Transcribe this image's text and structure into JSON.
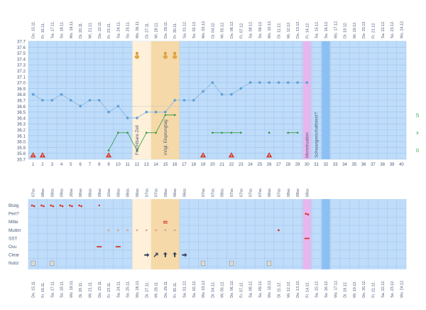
{
  "colors": {
    "panel_bg": "#bfdcfa",
    "grid": "#9fc4ec",
    "fertile_window": "#fff0d9",
    "fertile_window_edge": "#f6d9a8",
    "period_band": "#e7b6ef",
    "pregnancy_band": "#8cc0f2",
    "temp_line": "#8fbde2",
    "temp_point": "#5f9fd4",
    "lh_line": "#3aa14a",
    "lh_point": "#2e8a3d",
    "label_text": "#4a5a7a",
    "green_text": "#3aa14a",
    "red_marker": "#d23a2e"
  },
  "chart_data": {
    "type": "line",
    "days": [
      {
        "date": "Do. 15.11.",
        "cycle_day": "1",
        "time": "07ss"
      },
      {
        "date": "Fr. 16.11.",
        "cycle_day": "2",
        "time": "08ss"
      },
      {
        "date": "Sa. 17.11.",
        "cycle_day": "3",
        "time": "08ss"
      },
      {
        "date": "So. 18.11.",
        "cycle_day": "4",
        "time": "09ss"
      },
      {
        "date": "Mo. 19.11.",
        "cycle_day": "5",
        "time": "20ss"
      },
      {
        "date": "Di. 20.11.",
        "cycle_day": "6",
        "time": "06ss"
      },
      {
        "date": "Mi. 21.11.",
        "cycle_day": "7",
        "time": "06ss"
      },
      {
        "date": "Do. 22.11.",
        "cycle_day": "8",
        "time": "09ss"
      },
      {
        "date": "Fr. 23.11.",
        "cycle_day": "9",
        "time": "10ss"
      },
      {
        "date": "Sa. 24.11.",
        "cycle_day": "10",
        "time": "08ss"
      },
      {
        "date": "So. 25.11.",
        "cycle_day": "11",
        "time": "06ss"
      },
      {
        "date": "Mo. 26.11.",
        "cycle_day": "12",
        "time": "06ss"
      },
      {
        "date": "Di. 27.11.",
        "cycle_day": "13",
        "time": "07ss"
      },
      {
        "date": "Mi. 28.11.",
        "cycle_day": "14",
        "time": "07ss"
      },
      {
        "date": "Do. 29.11.",
        "cycle_day": "15",
        "time": "09ss"
      },
      {
        "date": "Fr. 30.11.",
        "cycle_day": "16",
        "time": "06ss"
      },
      {
        "date": "Sa. 01.12.",
        "cycle_day": "17",
        "time": "06ss"
      },
      {
        "date": "So. 02.12.",
        "cycle_day": "18",
        "time": ""
      },
      {
        "date": "Mo. 03.12.",
        "cycle_day": "19",
        "time": "07ss"
      },
      {
        "date": "Di. 04.12.",
        "cycle_day": "20",
        "time": "07ss"
      },
      {
        "date": "Mi. 05.12.",
        "cycle_day": "21",
        "time": "08ss"
      },
      {
        "date": "Do. 06.12.",
        "cycle_day": "22",
        "time": "07ss"
      },
      {
        "date": "Fr. 07.12.",
        "cycle_day": "23",
        "time": "07ss"
      },
      {
        "date": "Sa. 08.12.",
        "cycle_day": "24",
        "time": "07ss"
      },
      {
        "date": "So. 09.12.",
        "cycle_day": "25",
        "time": "07ss"
      },
      {
        "date": "Mo. 10.12.",
        "cycle_day": "26",
        "time": "06ss"
      },
      {
        "date": "Di. 11.12.",
        "cycle_day": "27",
        "time": "07ss"
      },
      {
        "date": "Mi. 12.12.",
        "cycle_day": "28",
        "time": "08ss"
      },
      {
        "date": "Do. 13.12.",
        "cycle_day": "29",
        "time": "08ss"
      },
      {
        "date": "Fr. 14.12.",
        "cycle_day": "30",
        "time": "08ss"
      },
      {
        "date": "Sa. 15.12.",
        "cycle_day": "31",
        "time": ""
      },
      {
        "date": "So. 16.12.",
        "cycle_day": "32",
        "time": ""
      },
      {
        "date": "Mo. 17.12.",
        "cycle_day": "33",
        "time": ""
      },
      {
        "date": "Di. 18.12.",
        "cycle_day": "34",
        "time": ""
      },
      {
        "date": "Mi. 19.12.",
        "cycle_day": "35",
        "time": ""
      },
      {
        "date": "Do. 20.12.",
        "cycle_day": "36",
        "time": ""
      },
      {
        "date": "Fr. 21.12.",
        "cycle_day": "37",
        "time": ""
      },
      {
        "date": "Sa. 22.12.",
        "cycle_day": "38",
        "time": ""
      },
      {
        "date": "So. 23.12.",
        "cycle_day": "39",
        "time": ""
      },
      {
        "date": "Mo. 24.12.",
        "cycle_day": "40",
        "time": ""
      }
    ],
    "y_ticks": [
      "37.7",
      "37.6",
      "37.5",
      "37.4",
      "37.3",
      "37.2",
      "37.1",
      "37.0",
      "36.9",
      "36.8",
      "36.7",
      "36.6",
      "36.5",
      "36.4",
      "36.3",
      "36.2",
      "36.1",
      "36.0",
      "35.9",
      "35.8",
      "35.7"
    ],
    "ylim": [
      35.7,
      37.7
    ],
    "temperature_series": [
      {
        "day": 1,
        "value": 36.8
      },
      {
        "day": 2,
        "value": 36.7
      },
      {
        "day": 3,
        "value": 36.7
      },
      {
        "day": 4,
        "value": 36.8
      },
      {
        "day": 5,
        "value": 36.7
      },
      {
        "day": 6,
        "value": 36.6
      },
      {
        "day": 7,
        "value": 36.7
      },
      {
        "day": 8,
        "value": 36.7
      },
      {
        "day": 9,
        "value": 36.5
      },
      {
        "day": 10,
        "value": 36.6
      },
      {
        "day": 11,
        "value": 36.4
      },
      {
        "day": 12,
        "value": 36.4
      },
      {
        "day": 13,
        "value": 36.5
      },
      {
        "day": 14,
        "value": 36.5
      },
      {
        "day": 15,
        "value": 36.5
      },
      {
        "day": 16,
        "value": 36.7
      },
      {
        "day": 17,
        "value": 36.7
      },
      {
        "day": 18,
        "value": 36.7
      },
      {
        "day": 19,
        "value": 36.85
      },
      {
        "day": 20,
        "value": 37.0
      },
      {
        "day": 21,
        "value": 36.8
      },
      {
        "day": 22,
        "value": 36.8
      },
      {
        "day": 23,
        "value": 36.9
      },
      {
        "day": 24,
        "value": 37.0
      },
      {
        "day": 25,
        "value": 37.0
      },
      {
        "day": 26,
        "value": 37.0
      },
      {
        "day": 27,
        "value": 37.0
      },
      {
        "day": 28,
        "value": 37.0
      },
      {
        "day": 29,
        "value": 37.0
      },
      {
        "day": 30,
        "value": 37.0
      }
    ],
    "baseline": 36.6,
    "lh_series": [
      {
        "day": 9,
        "level": "0"
      },
      {
        "day": 10,
        "level": "x"
      },
      {
        "day": 11,
        "level": "x"
      },
      {
        "day": 12,
        "level": "0"
      },
      {
        "day": 13,
        "level": "x"
      },
      {
        "day": 14,
        "level": "x"
      },
      {
        "day": 15,
        "level": "S"
      },
      {
        "day": 16,
        "level": "S"
      },
      {
        "day": 20,
        "level": "x"
      },
      {
        "day": 21,
        "level": "x"
      },
      {
        "day": 22,
        "level": "x"
      },
      {
        "day": 23,
        "level": "x"
      },
      {
        "day": 26,
        "level": "x"
      },
      {
        "day": 28,
        "level": "x"
      },
      {
        "day": 29,
        "level": "x"
      }
    ],
    "lh_levels": [
      "S",
      "x",
      "0"
    ],
    "intercourse_days": [
      12,
      15,
      16
    ],
    "warning_days": [
      1,
      2,
      9,
      19,
      22,
      26
    ],
    "fertile_window": {
      "start_day": 12,
      "end_day": 16,
      "peak_start_day": 14
    },
    "vertical_notes": [
      {
        "day": 12,
        "text": "Fruchtbare Zeit"
      },
      {
        "day": 15,
        "text": "mögl. Eisprungtag"
      },
      {
        "day": 30,
        "text": "Menstruation"
      },
      {
        "day": 31,
        "text": "Schwangerschaftstest?"
      }
    ],
    "period_band_day": 30,
    "pregnancy_band_day": 32,
    "rows": [
      {
        "label": "Blutg",
        "marks": [
          {
            "day": 1,
            "sym": "drop2"
          },
          {
            "day": 2,
            "sym": "drop2"
          },
          {
            "day": 3,
            "sym": "drop2"
          },
          {
            "day": 4,
            "sym": "drop2"
          },
          {
            "day": 5,
            "sym": "drop2"
          },
          {
            "day": 6,
            "sym": "drop2"
          },
          {
            "day": 8,
            "sym": "drop1"
          }
        ]
      },
      {
        "label": "Peri?",
        "marks": [
          {
            "day": 30,
            "sym": "drop2"
          }
        ]
      },
      {
        "label": "Mitte",
        "marks": [
          {
            "day": 15,
            "sym": "dash"
          }
        ]
      },
      {
        "label": "Muttm",
        "marks": [
          {
            "day": 9,
            "sym": "dot"
          },
          {
            "day": 10,
            "sym": "dot"
          },
          {
            "day": 11,
            "sym": "dot"
          },
          {
            "day": 12,
            "sym": "dot"
          },
          {
            "day": 13,
            "sym": "dot"
          },
          {
            "day": 14,
            "sym": "dot"
          },
          {
            "day": 15,
            "sym": "dot"
          },
          {
            "day": 16,
            "sym": "dot"
          },
          {
            "day": 27,
            "sym": "dotred"
          }
        ]
      },
      {
        "label": "SST",
        "marks": [
          {
            "day": 30,
            "sym": "bar"
          }
        ]
      },
      {
        "label": "Ovu",
        "marks": [
          {
            "day": 8,
            "sym": "bar"
          },
          {
            "day": 10,
            "sym": "bar"
          }
        ]
      },
      {
        "label": "Clear",
        "marks": [
          {
            "day": 13,
            "sym": "arrow-r"
          },
          {
            "day": 14,
            "sym": "arrow-ur"
          },
          {
            "day": 15,
            "sym": "arrow-u"
          },
          {
            "day": 16,
            "sym": "arrow-u"
          },
          {
            "day": 17,
            "sym": "arrow-r"
          }
        ]
      },
      {
        "label": "Notiz",
        "marks": [
          {
            "day": 1,
            "sym": "note"
          },
          {
            "day": 3,
            "sym": "note"
          },
          {
            "day": 19,
            "sym": "note"
          },
          {
            "day": 22,
            "sym": "note"
          },
          {
            "day": 26,
            "sym": "note"
          }
        ]
      }
    ]
  }
}
